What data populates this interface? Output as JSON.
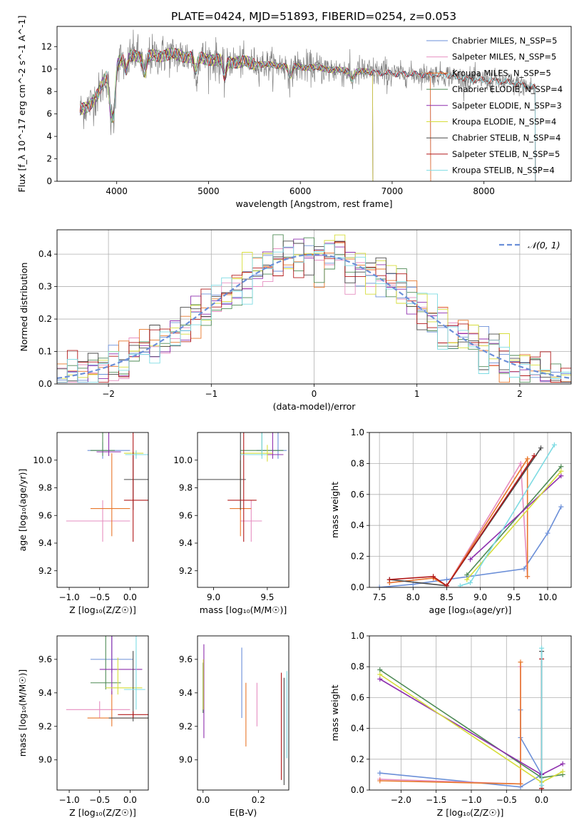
{
  "title": "PLATE=0424, MJD=51893, FIBERID=0254, z=0.053",
  "colors": [
    "#6b8fd8",
    "#e68ec0",
    "#e8772b",
    "#4e8a55",
    "#8e2fae",
    "#d6dd3a",
    "#4a4a4a",
    "#b2191a",
    "#7ddbe3"
  ],
  "chart_data": [
    {
      "id": "spectrum",
      "type": "line",
      "xlabel": "wavelength [Angstrom, rest frame]",
      "ylabel": "Flux [f_λ 10^-17 erg cm^-2 s^-1 A^-1]",
      "xlim": [
        3350,
        8950
      ],
      "ylim": [
        0,
        13.8
      ],
      "xticks": [
        4000,
        5000,
        6000,
        7000,
        8000
      ],
      "yticks": [
        0,
        2,
        4,
        6,
        8,
        10,
        12
      ],
      "data_series": {
        "name": "data",
        "color": "#808080",
        "range": [
          3600,
          8560
        ]
      },
      "models": [
        {
          "name": "Chabrier MILES, N_SSP=5",
          "color": "#6b8fd8",
          "end": 7420
        },
        {
          "name": "Salpeter MILES, N_SSP=5",
          "color": "#e68ec0",
          "end": 7420
        },
        {
          "name": "Kroupa MILES, N_SSP=5",
          "color": "#e8772b",
          "end": 7420
        },
        {
          "name": "Chabrier ELODIE, N_SSP=4",
          "color": "#4e8a55",
          "end": 6790
        },
        {
          "name": "Salpeter ELODIE, N_SSP=3",
          "color": "#8e2fae",
          "end": 6790
        },
        {
          "name": "Kroupa ELODIE, N_SSP=4",
          "color": "#d6dd3a",
          "end": 6790
        },
        {
          "name": "Chabrier STELIB, N_SSP=4",
          "color": "#4a4a4a",
          "end": 8560
        },
        {
          "name": "Salpeter STELIB, N_SSP=5",
          "color": "#b2191a",
          "end": 8560
        },
        {
          "name": "Kroupa STELIB, N_SSP=4",
          "color": "#7ddbe3",
          "end": 8560
        }
      ],
      "continuum": [
        [
          3600,
          6.3
        ],
        [
          3700,
          6.8
        ],
        [
          3800,
          7.8
        ],
        [
          3900,
          9.6
        ],
        [
          4000,
          10.6
        ],
        [
          4100,
          11.1
        ],
        [
          4200,
          11.3
        ],
        [
          4300,
          11.0
        ],
        [
          4400,
          11.2
        ],
        [
          4600,
          11.3
        ],
        [
          4800,
          11.1
        ],
        [
          5000,
          10.9
        ],
        [
          5200,
          10.7
        ],
        [
          5400,
          10.6
        ],
        [
          5600,
          10.4
        ],
        [
          5800,
          10.3
        ],
        [
          6000,
          10.2
        ],
        [
          6200,
          10.1
        ],
        [
          6400,
          9.9
        ],
        [
          6600,
          9.8
        ],
        [
          6800,
          9.7
        ],
        [
          7000,
          9.6
        ],
        [
          7200,
          9.55
        ],
        [
          7400,
          9.5
        ],
        [
          7600,
          9.5
        ],
        [
          7800,
          9.1
        ],
        [
          8000,
          9.0
        ],
        [
          8200,
          8.9
        ],
        [
          8400,
          8.6
        ],
        [
          8560,
          8.3
        ]
      ],
      "dips": [
        [
          3934,
          3.5
        ],
        [
          3968,
          4.0
        ],
        [
          4102,
          1.5
        ],
        [
          4304,
          1.5
        ],
        [
          4861,
          1.3
        ],
        [
          5175,
          1.5
        ],
        [
          5890,
          1.0
        ],
        [
          6563,
          0.8
        ]
      ]
    },
    {
      "id": "residuals",
      "type": "step",
      "xlabel": "(data-model)/error",
      "ylabel": "Normed distribution",
      "xlim": [
        -2.5,
        2.5
      ],
      "ylim": [
        0,
        0.475
      ],
      "xticks": [
        -2,
        -1,
        0,
        1,
        2
      ],
      "yticks": [
        0.0,
        0.1,
        0.2,
        0.3,
        0.4
      ],
      "bin_width": 0.1,
      "bin_start": -2.5,
      "reference": {
        "label": "𝒩(0, 1)",
        "color": "#6b8fd8"
      }
    },
    {
      "id": "age-Z",
      "type": "errorbar",
      "xlabel": "Z [log₁₀(Z/Z☉)]",
      "ylabel": "age  [log₁₀(age/yr)]",
      "xlim": [
        -1.2,
        0.3
      ],
      "ylim": [
        9.08,
        10.2
      ],
      "xticks": [
        -1.0,
        -0.5,
        0.0
      ],
      "yticks": [
        9.2,
        9.4,
        9.6,
        9.8,
        10.0
      ],
      "points": [
        {
          "x": -0.45,
          "y": 10.07,
          "xerr": [
            0.25,
            0.45
          ],
          "yerr": [
            0.06,
            0.06
          ],
          "color": "#6b8fd8"
        },
        {
          "x": -0.45,
          "y": 9.56,
          "xerr": [
            0.6,
            0.45
          ],
          "yerr": [
            0.15,
            0.15
          ],
          "color": "#e68ec0"
        },
        {
          "x": -0.3,
          "y": 9.65,
          "xerr": [
            0.35,
            0.3
          ],
          "yerr": [
            0.2,
            0.4
          ],
          "color": "#e8772b"
        },
        {
          "x": -0.45,
          "y": 10.07,
          "xerr": [
            0.2,
            0.2
          ],
          "yerr": [
            0.04,
            0.14
          ],
          "color": "#4e8a55"
        },
        {
          "x": -0.35,
          "y": 10.06,
          "xerr": [
            0.2,
            0.2
          ],
          "yerr": [
            0.03,
            0.25
          ],
          "color": "#8e2fae"
        },
        {
          "x": 0.1,
          "y": 10.05,
          "xerr": [
            0.2,
            0.12
          ],
          "yerr": [
            0.02,
            0.02
          ],
          "color": "#d6dd3a"
        },
        {
          "x": 0.05,
          "y": 9.86,
          "xerr": [
            0.15,
            0.25
          ],
          "yerr": [
            0.22,
            0.2
          ],
          "color": "#4a4a4a"
        },
        {
          "x": 0.05,
          "y": 9.71,
          "xerr": [
            0.15,
            0.25
          ],
          "yerr": [
            0.3,
            0.58
          ],
          "color": "#b2191a"
        },
        {
          "x": 0.1,
          "y": 10.04,
          "xerr": [
            0.18,
            0.2
          ],
          "yerr": [
            0.03,
            0.03
          ],
          "color": "#7ddbe3"
        }
      ]
    },
    {
      "id": "age-mass",
      "type": "errorbar",
      "xlabel": "mass [log₁₀(M/M☉)]",
      "ylabel": "",
      "xlim": [
        8.85,
        9.7
      ],
      "ylim": [
        9.08,
        10.2
      ],
      "xticks": [
        9.0,
        9.5
      ],
      "yticks": [
        9.2,
        9.4,
        9.6,
        9.8,
        10.0
      ],
      "points": [
        {
          "x": 9.6,
          "y": 10.07,
          "xerr": [
            0.2,
            0.08
          ],
          "yerr": [
            0.06,
            0.4
          ],
          "color": "#6b8fd8"
        },
        {
          "x": 9.35,
          "y": 9.56,
          "xerr": [
            0.1,
            0.1
          ],
          "yerr": [
            0.15,
            0.15
          ],
          "color": "#e68ec0"
        },
        {
          "x": 9.25,
          "y": 9.65,
          "xerr": [
            0.1,
            0.1
          ],
          "yerr": [
            0.2,
            0.35
          ],
          "color": "#e8772b"
        },
        {
          "x": 9.45,
          "y": 10.07,
          "xerr": [
            0.2,
            0.2
          ],
          "yerr": [
            0.04,
            0.14
          ],
          "color": "#4e8a55"
        },
        {
          "x": 9.55,
          "y": 10.04,
          "xerr": [
            0.25,
            0.1
          ],
          "yerr": [
            0.03,
            0.3
          ],
          "color": "#8e2fae"
        },
        {
          "x": 9.5,
          "y": 10.05,
          "xerr": [
            0.25,
            0.05
          ],
          "yerr": [
            0.06,
            0.06
          ],
          "color": "#d6dd3a"
        },
        {
          "x": 9.25,
          "y": 9.86,
          "xerr": [
            0.4,
            0.05
          ],
          "yerr": [
            0.22,
            0.55
          ],
          "color": "#4a4a4a"
        },
        {
          "x": 9.28,
          "y": 9.71,
          "xerr": [
            0.15,
            0.12
          ],
          "yerr": [
            0.3,
            0.58
          ],
          "color": "#b2191a"
        },
        {
          "x": 9.45,
          "y": 10.04,
          "xerr": [
            0.2,
            0.05
          ],
          "yerr": [
            0.03,
            0.68
          ],
          "color": "#7ddbe3"
        }
      ]
    },
    {
      "id": "weight-age",
      "type": "line",
      "xlabel": "age  [log₁₀(age/yr)]",
      "ylabel": "mass weight",
      "xlim": [
        7.35,
        10.35
      ],
      "ylim": [
        0,
        1.0
      ],
      "xticks": [
        7.5,
        8.0,
        8.5,
        9.0,
        9.5,
        10.0
      ],
      "yticks": [
        0.0,
        0.2,
        0.4,
        0.6,
        0.8,
        1.0
      ],
      "series": [
        {
          "color": "#6b8fd8",
          "x": [
            7.5,
            8.0,
            8.5,
            9.65,
            10.0,
            10.2
          ],
          "y": [
            0.0,
            0.02,
            0.05,
            0.12,
            0.35,
            0.52
          ]
        },
        {
          "color": "#e68ec0",
          "x": [
            7.65,
            8.3,
            8.5,
            9.6,
            9.7
          ],
          "y": [
            0.03,
            0.06,
            0.01,
            0.8,
            0.07
          ]
        },
        {
          "color": "#e8772b",
          "x": [
            7.65,
            8.3,
            8.5,
            9.7,
            9.7
          ],
          "y": [
            0.03,
            0.06,
            0.01,
            0.83,
            0.07
          ]
        },
        {
          "color": "#4e8a55",
          "x": [
            8.8,
            10.2
          ],
          "y": [
            0.08,
            0.78
          ]
        },
        {
          "color": "#8e2fae",
          "x": [
            8.85,
            10.2
          ],
          "y": [
            0.18,
            0.72
          ]
        },
        {
          "color": "#d6dd3a",
          "x": [
            8.8,
            10.2
          ],
          "y": [
            0.05,
            0.75
          ]
        },
        {
          "color": "#4a4a4a",
          "x": [
            7.65,
            8.5,
            9.9
          ],
          "y": [
            0.05,
            0.01,
            0.9
          ]
        },
        {
          "color": "#b2191a",
          "x": [
            7.65,
            8.3,
            8.5,
            9.8
          ],
          "y": [
            0.05,
            0.07,
            0.01,
            0.85
          ]
        },
        {
          "color": "#7ddbe3",
          "x": [
            8.7,
            8.85,
            10.1
          ],
          "y": [
            0.01,
            0.03,
            0.92
          ]
        }
      ]
    },
    {
      "id": "mass-Z",
      "type": "errorbar",
      "xlabel": "Z [log₁₀(Z/Z☉)]",
      "ylabel": "mass [log₁₀(M/M☉)]",
      "xlim": [
        -1.2,
        0.3
      ],
      "ylim": [
        8.82,
        9.74
      ],
      "xticks": [
        -1.0,
        -0.5,
        0.0
      ],
      "yticks": [
        9.0,
        9.2,
        9.4,
        9.6
      ],
      "points": [
        {
          "x": -0.3,
          "y": 9.6,
          "xerr": [
            0.35,
            0.35
          ],
          "yerr": [
            0.08,
            0.35
          ],
          "color": "#6b8fd8"
        },
        {
          "x": -0.5,
          "y": 9.3,
          "xerr": [
            0.55,
            0.5
          ],
          "yerr": [
            0.05,
            0.05
          ],
          "color": "#e68ec0"
        },
        {
          "x": -0.3,
          "y": 9.25,
          "xerr": [
            0.4,
            0.6
          ],
          "yerr": [
            0.05,
            0.16
          ],
          "color": "#e8772b"
        },
        {
          "x": -0.4,
          "y": 9.46,
          "xerr": [
            0.25,
            0.25
          ],
          "yerr": [
            0.04,
            0.3
          ],
          "color": "#4e8a55"
        },
        {
          "x": -0.3,
          "y": 9.54,
          "xerr": [
            0.2,
            0.5
          ],
          "yerr": [
            0.15,
            0.42
          ],
          "color": "#8e2fae"
        },
        {
          "x": -0.2,
          "y": 9.43,
          "xerr": [
            0.2,
            0.4
          ],
          "yerr": [
            0.04,
            0.18
          ],
          "color": "#d6dd3a"
        },
        {
          "x": 0.05,
          "y": 9.25,
          "xerr": [
            0.4,
            0.25
          ],
          "yerr": [
            0.02,
            0.4
          ],
          "color": "#4a4a4a"
        },
        {
          "x": 0.05,
          "y": 9.27,
          "xerr": [
            0.25,
            0.25
          ],
          "yerr": [
            0.02,
            0.02
          ],
          "color": "#b2191a"
        },
        {
          "x": 0.1,
          "y": 9.42,
          "xerr": [
            0.2,
            0.15
          ],
          "yerr": [
            0.12,
            0.43
          ],
          "color": "#7ddbe3"
        }
      ]
    },
    {
      "id": "mass-EBV",
      "type": "errorbar",
      "xlabel": "E(B-V)",
      "ylabel": "",
      "xlim": [
        -0.02,
        0.31
      ],
      "ylim": [
        8.82,
        9.74
      ],
      "xticks": [
        0.0,
        0.2
      ],
      "yticks": [
        9.0,
        9.2,
        9.4,
        9.6
      ],
      "points": [
        {
          "x": 0.14,
          "y": 9.46,
          "xerr": [
            0,
            0
          ],
          "yerr": [
            0.21,
            0.21
          ],
          "color": "#6b8fd8"
        },
        {
          "x": 0.195,
          "y": 9.33,
          "xerr": [
            0,
            0
          ],
          "yerr": [
            0.13,
            0.13
          ],
          "color": "#e68ec0"
        },
        {
          "x": 0.155,
          "y": 9.21,
          "xerr": [
            0,
            0
          ],
          "yerr": [
            0.13,
            0.25
          ],
          "color": "#e8772b"
        },
        {
          "x": 0.0,
          "y": 9.43,
          "xerr": [
            0,
            0
          ],
          "yerr": [
            0.15,
            0.15
          ],
          "color": "#4e8a55"
        },
        {
          "x": 0.003,
          "y": 9.41,
          "xerr": [
            0,
            0
          ],
          "yerr": [
            0.28,
            0.28
          ],
          "color": "#8e2fae"
        },
        {
          "x": 0.001,
          "y": 9.45,
          "xerr": [
            0,
            0
          ],
          "yerr": [
            0.15,
            0.15
          ],
          "color": "#d6dd3a"
        },
        {
          "x": 0.293,
          "y": 9.17,
          "xerr": [
            0,
            0
          ],
          "yerr": [
            0.32,
            0.32
          ],
          "color": "#4a4a4a"
        },
        {
          "x": 0.283,
          "y": 9.2,
          "xerr": [
            0,
            0
          ],
          "yerr": [
            0.32,
            0.32
          ],
          "color": "#b2191a"
        },
        {
          "x": 0.303,
          "y": 9.27,
          "xerr": [
            0,
            0
          ],
          "yerr": [
            0.26,
            0.26
          ],
          "color": "#7ddbe3"
        }
      ]
    },
    {
      "id": "weight-Z",
      "type": "line",
      "xlabel": "Z [log₁₀(Z/Z☉)]",
      "ylabel": "mass weight",
      "xlim": [
        -2.45,
        0.42
      ],
      "ylim": [
        0,
        1.0
      ],
      "xticks": [
        -2.0,
        -1.5,
        -1.0,
        -0.5,
        0.0
      ],
      "yticks": [
        0.0,
        0.2,
        0.4,
        0.6,
        0.8,
        1.0
      ],
      "series": [
        {
          "color": "#6b8fd8",
          "x": [
            -2.3,
            -0.3,
            0.0,
            -0.3,
            -0.3
          ],
          "y": [
            0.11,
            0.02,
            0.1,
            0.34,
            0.52
          ]
        },
        {
          "color": "#e68ec0",
          "x": [
            -2.3,
            -0.3,
            -0.3
          ],
          "y": [
            0.07,
            0.04,
            0.8
          ]
        },
        {
          "color": "#e8772b",
          "x": [
            -2.3,
            -0.3,
            -0.3
          ],
          "y": [
            0.06,
            0.04,
            0.83
          ]
        },
        {
          "color": "#4e8a55",
          "x": [
            -2.3,
            0.0,
            0.3
          ],
          "y": [
            0.78,
            0.08,
            0.1
          ]
        },
        {
          "color": "#8e2fae",
          "x": [
            -2.3,
            0.0,
            0.3
          ],
          "y": [
            0.72,
            0.1,
            0.17
          ]
        },
        {
          "color": "#d6dd3a",
          "x": [
            -2.3,
            0.0,
            0.3
          ],
          "y": [
            0.75,
            0.05,
            0.12
          ]
        },
        {
          "color": "#4a4a4a",
          "x": [
            0.0,
            0.0
          ],
          "y": [
            0.01,
            0.9
          ]
        },
        {
          "color": "#b2191a",
          "x": [
            0.0,
            0.0
          ],
          "y": [
            0.01,
            0.85
          ]
        },
        {
          "color": "#7ddbe3",
          "x": [
            0.0,
            0.0
          ],
          "y": [
            0.03,
            0.92
          ]
        }
      ]
    }
  ]
}
